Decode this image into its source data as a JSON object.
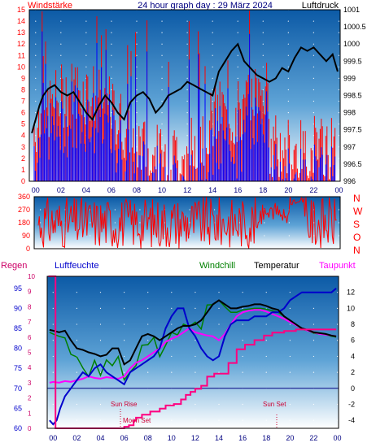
{
  "colors": {
    "wind": "#ff0000",
    "gust": "#0000ff",
    "pressure": "#000000",
    "winddir": "#ff0000",
    "rain": "#cc0066",
    "humidity": "#0000cc",
    "windchill": "#008000",
    "temp": "#000000",
    "dewpoint": "#ff00ff",
    "rain_line": "#ff0080",
    "axis_blue": "#000080"
  },
  "chart_data": [
    {
      "type": "line",
      "title": "24 hour graph day : 29 März 2024",
      "left_label": "Windstärke",
      "right_label": "Luftdruck",
      "x_ticks": [
        "00",
        "02",
        "04",
        "06",
        "08",
        "10",
        "12",
        "14",
        "16",
        "18",
        "20",
        "22",
        "00"
      ],
      "y_left_ticks": [
        "0",
        "1",
        "2",
        "3",
        "4",
        "5",
        "6",
        "7",
        "8",
        "9",
        "10",
        "11",
        "12",
        "13",
        "14",
        "15"
      ],
      "y_left_range": [
        0,
        15
      ],
      "y_right_ticks": [
        "996",
        "996.5",
        "997",
        "997.5",
        "998",
        "998.5",
        "999",
        "999.5",
        "1000",
        "1000.5",
        "1001"
      ],
      "y_right_range": [
        996,
        1001
      ],
      "series": [
        {
          "name": "Luftdruck",
          "x": [
            -0.3,
            0,
            0.3,
            0.6,
            1,
            1.5,
            2,
            2.5,
            3,
            3.5,
            4,
            4.5,
            5,
            5.5,
            6,
            6.5,
            7,
            7.5,
            8,
            8.5,
            9,
            9.5,
            10,
            10.5,
            11,
            11.5,
            12,
            12.5,
            13,
            13.5,
            14,
            14.5,
            15,
            15.5,
            16,
            16.5,
            17,
            17.5,
            18,
            18.5,
            19,
            19.5,
            20,
            20.5,
            21,
            21.5,
            22,
            22.5,
            23,
            23.5,
            23.9
          ],
          "values": [
            997.4,
            997.8,
            998.2,
            998.5,
            998.7,
            998.8,
            998.6,
            998.5,
            998.6,
            998.3,
            998.0,
            997.8,
            998.2,
            998.5,
            998.3,
            998.0,
            997.8,
            998.3,
            998.5,
            998.6,
            998.4,
            998.0,
            998.2,
            998.5,
            998.6,
            998.7,
            998.9,
            998.8,
            998.7,
            998.6,
            998.5,
            999.2,
            999.5,
            999.8,
            1000.0,
            999.5,
            999.3,
            999.1,
            999.0,
            998.9,
            999.0,
            999.3,
            999.2,
            999.6,
            999.9,
            999.8,
            999.9,
            999.7,
            999.5,
            999.7,
            999.2
          ]
        }
      ]
    },
    {
      "type": "scatter",
      "y_ticks": [
        "360",
        "270",
        "180",
        "90",
        "0"
      ],
      "y_range": [
        0,
        360
      ],
      "compass_labels": [
        "N",
        "W",
        "S",
        "O",
        "N"
      ],
      "x_range": [
        -0.5,
        24
      ]
    },
    {
      "type": "line",
      "legend": [
        "Regen",
        "Luftfeuchte",
        "Windchill",
        "Temperatur",
        "Taupunkt"
      ],
      "x_ticks": [
        "00",
        "02",
        "04",
        "06",
        "08",
        "10",
        "12",
        "14",
        "16",
        "18",
        "20",
        "22",
        "00"
      ],
      "annotations": [
        "Sun Rise",
        "Moon Set",
        "Sun Set"
      ],
      "y_rain_ticks": [
        "0",
        "1",
        "2",
        "3",
        "4",
        "5",
        "6",
        "7",
        "8",
        "9",
        "10"
      ],
      "y_rain_range": [
        0,
        10
      ],
      "y_humidity_ticks": [
        "60",
        "65",
        "70",
        "75",
        "80",
        "85",
        "90",
        "95"
      ],
      "y_humidity_range": [
        60,
        98
      ],
      "y_temp_ticks": [
        "-4",
        "-2",
        "0",
        "2",
        "4",
        "6",
        "8",
        "10",
        "12"
      ],
      "y_temp_range": [
        -5,
        14
      ],
      "series": [
        {
          "name": "Temperatur",
          "x": [
            -0.3,
            0,
            0.5,
            1,
            1.5,
            2,
            2.5,
            3,
            3.5,
            4,
            4.5,
            5,
            5.5,
            6,
            6.5,
            7,
            7.5,
            8,
            8.5,
            9,
            9.5,
            10,
            10.5,
            11,
            11.5,
            12,
            12.5,
            13,
            13.5,
            14,
            14.5,
            15,
            15.5,
            16,
            16.5,
            17,
            17.5,
            18,
            18.5,
            19,
            19.5,
            20,
            20.5,
            21,
            21.5,
            22,
            22.5,
            23,
            23.5,
            23.9
          ],
          "values": [
            7.3,
            7.2,
            7.0,
            7.2,
            6.0,
            5.0,
            4.8,
            4.5,
            4.3,
            4.0,
            4.2,
            5.0,
            5.0,
            3.0,
            3.5,
            5.0,
            6.5,
            6.8,
            6.5,
            6.0,
            6.5,
            7.0,
            7.5,
            7.8,
            7.8,
            8.0,
            8.5,
            9.5,
            10.5,
            11.0,
            10.5,
            10.0,
            10.0,
            10.2,
            10.3,
            10.5,
            10.5,
            10.3,
            10.0,
            9.8,
            9.0,
            8.5,
            8.0,
            7.5,
            7.3,
            7.0,
            6.9,
            6.8,
            6.6,
            6.5
          ]
        },
        {
          "name": "Windchill",
          "x": [
            -0.3,
            0,
            0.5,
            1,
            1.5,
            2,
            2.5,
            3,
            3.5,
            4,
            4.5,
            5,
            5.5,
            6,
            6.5,
            7,
            7.5,
            8,
            8.5,
            9,
            9.5,
            10,
            10.5,
            11,
            11.5,
            12,
            12.5,
            13,
            13.5,
            14,
            14.5,
            15,
            15.5,
            16,
            16.5,
            17,
            17.5,
            18,
            18.5,
            19,
            19.5,
            20,
            20.5,
            21,
            21.5,
            22,
            22.5,
            23,
            23.5,
            23.9
          ],
          "values": [
            7.0,
            6.8,
            6.5,
            6.3,
            5.0,
            4.0,
            3.0,
            2.5,
            3.5,
            2.0,
            3.0,
            3.5,
            4.0,
            0.5,
            1.0,
            3.5,
            5.5,
            6.0,
            5.5,
            4.5,
            5.5,
            6.0,
            6.5,
            7.0,
            7.0,
            7.5,
            8.0,
            9.5,
            10.5,
            11.0,
            10.2,
            9.5,
            9.5,
            9.8,
            9.9,
            10.0,
            10.0,
            9.9,
            9.7,
            9.5,
            9.0,
            8.4,
            7.9,
            7.4,
            7.2,
            6.9,
            6.8,
            6.7,
            6.5,
            6.4
          ]
        },
        {
          "name": "Taupunkt",
          "x": [
            -0.3,
            0,
            0.5,
            1,
            1.5,
            2,
            2.5,
            3,
            3.5,
            4,
            4.5,
            5,
            5.5,
            6,
            6.5,
            7,
            7.5,
            8,
            8.5,
            9,
            9.5,
            10,
            10.5,
            11,
            11.5,
            12,
            12.5,
            13,
            13.5,
            14,
            14.5,
            15,
            15.5,
            16,
            16.5,
            17,
            17.5,
            18,
            18.5,
            19,
            19.5,
            20,
            20.5,
            21,
            21.5,
            22,
            22.5,
            23,
            23.5,
            23.9
          ],
          "values": [
            0.7,
            0.8,
            0.7,
            0.9,
            0.8,
            1.0,
            1.2,
            1.5,
            1.3,
            1.2,
            1.4,
            1.3,
            1.2,
            1.5,
            2.5,
            3.2,
            3.5,
            4.0,
            4.5,
            5.0,
            5.8,
            6.2,
            6.5,
            7.0,
            7.5,
            7.0,
            6.8,
            6.6,
            6.5,
            6.0,
            6.8,
            8.0,
            9.0,
            9.5,
            9.7,
            9.8,
            9.8,
            9.6,
            9.3,
            9.0,
            8.7,
            8.3,
            7.9,
            7.5,
            7.2,
            7.0,
            6.8,
            6.7,
            6.6,
            6.5
          ]
        },
        {
          "name": "Luftfeuchte",
          "x": [
            -0.3,
            0,
            0.3,
            0.6,
            1,
            1.5,
            2,
            2.5,
            3,
            3.5,
            4,
            4.5,
            5,
            5.5,
            6,
            6.5,
            7,
            7.5,
            8,
            8.5,
            9,
            9.5,
            10,
            10.5,
            11,
            11.5,
            12,
            12.5,
            13,
            13.5,
            14,
            14.5,
            15,
            15.5,
            16,
            16.5,
            17,
            17.5,
            18,
            18.5,
            19,
            19.5,
            20,
            20.5,
            21,
            21.5,
            22,
            22.5,
            23,
            23.5,
            23.9
          ],
          "values": [
            62,
            61,
            62,
            65,
            68,
            70,
            72,
            74,
            73,
            75,
            76,
            74,
            73,
            72,
            71,
            74,
            75,
            76,
            77,
            78,
            80,
            85,
            88,
            90,
            90,
            85,
            83,
            80,
            78,
            77,
            78,
            83,
            86,
            87,
            87,
            87,
            88,
            88,
            88,
            89,
            89,
            90,
            92,
            93,
            94,
            94,
            94,
            94,
            94,
            94,
            95
          ]
        },
        {
          "name": "Regen",
          "x": [
            -0.4,
            0.2,
            0.2,
            5.5,
            6.0,
            6.4,
            6.8,
            7.0,
            7.5,
            8.2,
            9.0,
            9.5,
            10.2,
            10.8,
            11.2,
            11.6,
            12.0,
            12.5,
            13.0,
            13.6,
            14.4,
            14.8,
            15.5,
            16.2,
            17.0,
            17.8,
            18.5,
            19.5,
            20.5,
            21.5,
            22.5,
            23.5,
            23.9
          ],
          "values": [
            10,
            10,
            0,
            0,
            0.1,
            0.2,
            0.5,
            0.7,
            0.9,
            1.1,
            1.3,
            1.5,
            1.6,
            1.9,
            2.2,
            2.4,
            2.6,
            2.8,
            3.4,
            3.6,
            3.6,
            4.3,
            5.2,
            5.5,
            5.8,
            6.1,
            6.3,
            6.4,
            6.5,
            6.5,
            6.5,
            6.5,
            6.5
          ]
        }
      ]
    }
  ]
}
